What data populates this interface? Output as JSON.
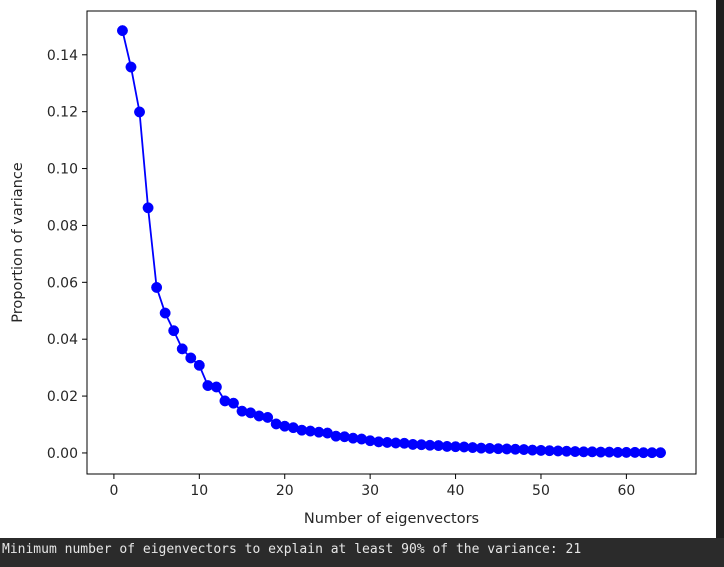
{
  "chart_data": {
    "type": "line",
    "title": "",
    "xlabel": "Number of eigenvectors",
    "ylabel": "Proportion of variance",
    "xlim": [
      -3.15,
      68.15
    ],
    "ylim": [
      -0.0074,
      0.1554
    ],
    "xticks": [
      0,
      10,
      20,
      30,
      40,
      50,
      60
    ],
    "yticks": [
      0.0,
      0.02,
      0.04,
      0.06,
      0.08,
      0.1,
      0.12,
      0.14
    ],
    "xtick_labels": [
      "0",
      "10",
      "20",
      "30",
      "40",
      "50",
      "60"
    ],
    "ytick_labels": [
      "0.00",
      "0.02",
      "0.04",
      "0.06",
      "0.08",
      "0.10",
      "0.12",
      "0.14"
    ],
    "grid": false,
    "marker": "o",
    "color": "#0000ff",
    "series": [
      {
        "x": [
          1,
          2,
          3,
          4,
          5,
          6,
          7,
          8,
          9,
          10,
          11,
          12,
          13,
          14,
          15,
          16,
          17,
          18,
          19,
          20,
          21,
          22,
          23,
          24,
          25,
          26,
          27,
          28,
          29,
          30,
          31,
          32,
          33,
          34,
          35,
          36,
          37,
          38,
          39,
          40,
          41,
          42,
          43,
          44,
          45,
          46,
          47,
          48,
          49,
          50,
          51,
          52,
          53,
          54,
          55,
          56,
          57,
          58,
          59,
          60,
          61,
          62,
          63,
          64
        ],
        "values": [
          0.1485,
          0.1357,
          0.1199,
          0.0862,
          0.0582,
          0.0492,
          0.043,
          0.0366,
          0.0334,
          0.0308,
          0.0237,
          0.0232,
          0.0183,
          0.0175,
          0.0147,
          0.0141,
          0.013,
          0.0125,
          0.0102,
          0.0094,
          0.0089,
          0.008,
          0.0077,
          0.0073,
          0.007,
          0.0059,
          0.0057,
          0.0052,
          0.0049,
          0.0043,
          0.0039,
          0.0037,
          0.0035,
          0.0034,
          0.003,
          0.0029,
          0.0027,
          0.0026,
          0.0023,
          0.0022,
          0.0021,
          0.0019,
          0.0017,
          0.0016,
          0.0015,
          0.0014,
          0.0013,
          0.0012,
          0.001,
          0.0009,
          0.0008,
          0.0007,
          0.0006,
          0.0005,
          0.0004,
          0.0004,
          0.0003,
          0.0003,
          0.0002,
          0.0002,
          0.0002,
          0.0001,
          0.0001,
          0.0001
        ]
      }
    ]
  },
  "output_text": "Minimum number of eigenvectors to explain at least 90% of the variance: 21"
}
